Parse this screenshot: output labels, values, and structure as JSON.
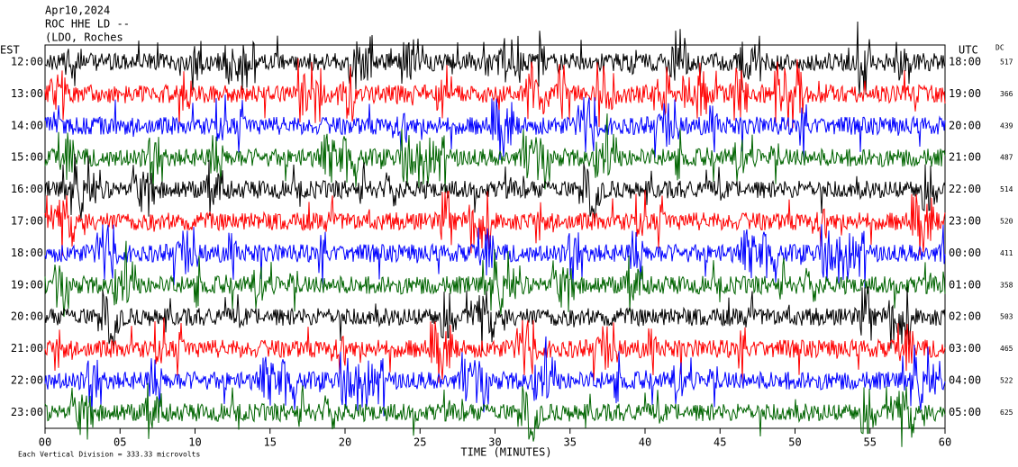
{
  "chart_data": {
    "type": "helicorder",
    "header": [
      "Apr10,2024",
      "ROC HHE LD --",
      "(LDO, Roches"
    ],
    "left_axis_title": "EST",
    "right_axis_title": "UTC",
    "dc_title": "DC",
    "xlabel": "TIME (MINUTES)",
    "footer": "Each Vertical Division =  333.33 microvolts",
    "xlim": [
      0,
      60
    ],
    "xticks": [
      {
        "value": 0,
        "label": "00"
      },
      {
        "value": 5,
        "label": "05"
      },
      10,
      15,
      20,
      25,
      30,
      35,
      40,
      45,
      50,
      55,
      60
    ],
    "rows": [
      {
        "left": "12:00",
        "right": "18:00",
        "dc": "517",
        "color": "#000000"
      },
      {
        "left": "13:00",
        "right": "19:00",
        "dc": "366",
        "color": "#ff0000"
      },
      {
        "left": "14:00",
        "right": "20:00",
        "dc": "439",
        "color": "#0000ff"
      },
      {
        "left": "15:00",
        "right": "21:00",
        "dc": "487",
        "color": "#006400"
      },
      {
        "left": "16:00",
        "right": "22:00",
        "dc": "514",
        "color": "#000000"
      },
      {
        "left": "17:00",
        "right": "23:00",
        "dc": "520",
        "color": "#ff0000"
      },
      {
        "left": "18:00",
        "right": "00:00",
        "dc": "411",
        "color": "#0000ff"
      },
      {
        "left": "19:00",
        "right": "01:00",
        "dc": "358",
        "color": "#006400"
      },
      {
        "left": "20:00",
        "right": "02:00",
        "dc": "503",
        "color": "#000000"
      },
      {
        "left": "21:00",
        "right": "03:00",
        "dc": "465",
        "color": "#ff0000"
      },
      {
        "left": "22:00",
        "right": "04:00",
        "dc": "522",
        "color": "#0000ff"
      },
      {
        "left": "23:00",
        "right": "05:00",
        "dc": "625",
        "color": "#006400"
      }
    ]
  }
}
